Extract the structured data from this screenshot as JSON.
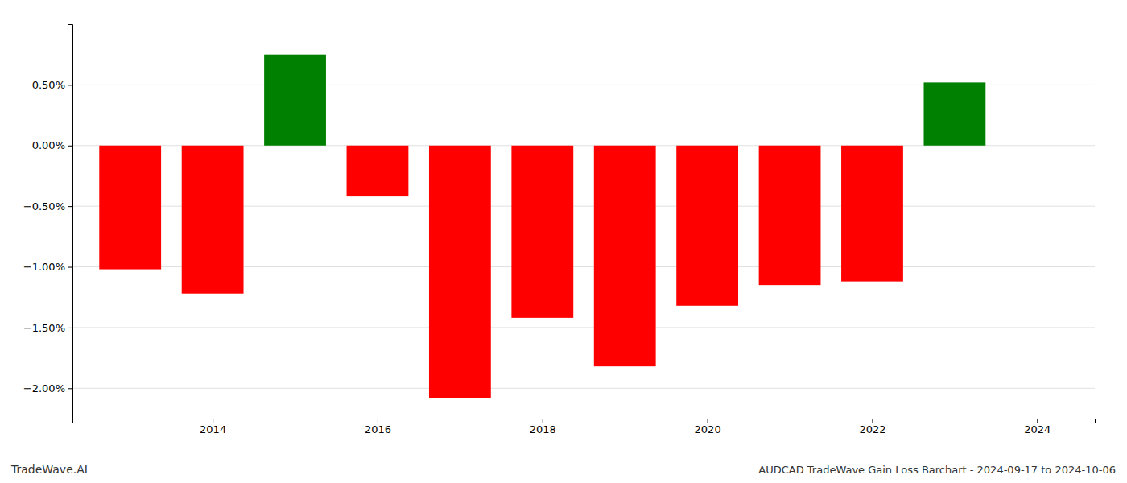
{
  "chart_data": {
    "type": "bar",
    "x": [
      2013,
      2014,
      2015,
      2016,
      2017,
      2018,
      2019,
      2020,
      2021,
      2022,
      2023
    ],
    "values": [
      -1.02,
      -1.22,
      0.75,
      -0.42,
      -2.08,
      -1.42,
      -1.82,
      -1.32,
      -1.15,
      -1.12,
      0.52
    ],
    "colors": [
      "#ff0000",
      "#ff0000",
      "#008000",
      "#ff0000",
      "#ff0000",
      "#ff0000",
      "#ff0000",
      "#ff0000",
      "#ff0000",
      "#ff0000",
      "#008000"
    ],
    "xlim": [
      2012.3,
      2024.7
    ],
    "xticks": [
      2014,
      2016,
      2018,
      2020,
      2022,
      2024
    ],
    "ylim": [
      -2.25,
      1.0
    ],
    "yticks": [
      {
        "value": -2.0,
        "label": "−2.00%"
      },
      {
        "value": -1.5,
        "label": "−1.50%"
      },
      {
        "value": -1.0,
        "label": "−1.00%"
      },
      {
        "value": -0.5,
        "label": "−0.50%"
      },
      {
        "value": 0.0,
        "label": "0.00%"
      },
      {
        "value": 0.5,
        "label": "0.50%"
      }
    ],
    "grid": true,
    "annotations": [
      "TradeWave.AI",
      "AUDCAD TradeWave Gain Loss Barchart - 2024-09-17 to 2024-10-06"
    ]
  }
}
